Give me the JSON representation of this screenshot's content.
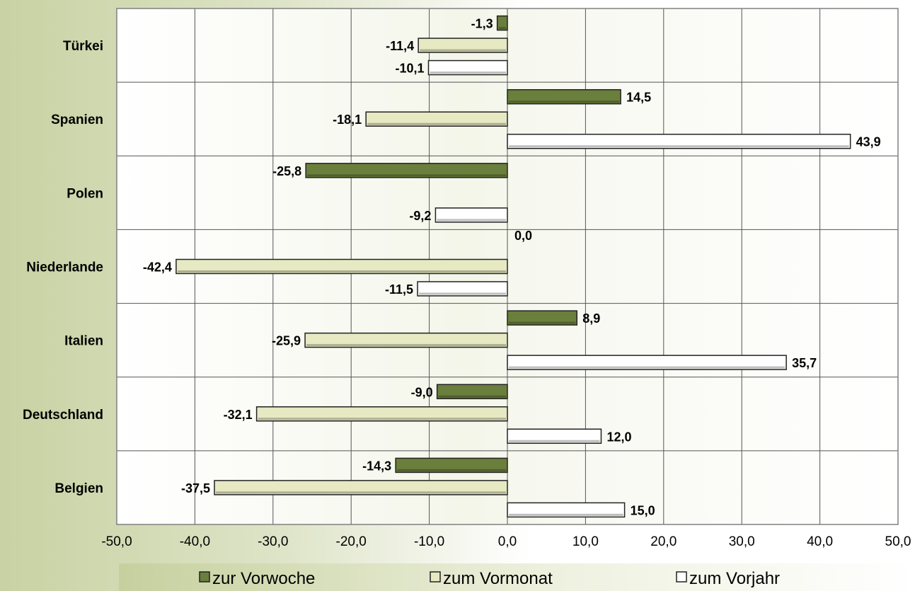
{
  "chart_data": {
    "type": "bar",
    "orientation": "horizontal",
    "categories": [
      "Türkei",
      "Spanien",
      "Polen",
      "Niederlande",
      "Italien",
      "Deutschland",
      "Belgien"
    ],
    "series": [
      {
        "name": "zur Vorwoche",
        "values": [
          -1.3,
          14.5,
          -25.8,
          0.0,
          8.9,
          -9.0,
          -14.3
        ],
        "labels": [
          "-1,3",
          "14,5",
          "-25,8",
          "0,0",
          "8,9",
          "-9,0",
          "-14,3"
        ],
        "color": "#6b7f3c"
      },
      {
        "name": "zum Vormonat",
        "values": [
          -11.4,
          -18.1,
          null,
          -42.4,
          -25.9,
          -32.1,
          -37.5
        ],
        "labels": [
          "-11,4",
          "-18,1",
          "",
          "-42,4",
          "-25,9",
          "-32,1",
          "-37,5"
        ],
        "color": "#e6e9c2"
      },
      {
        "name": "zum Vorjahr",
        "values": [
          -10.1,
          43.9,
          -9.2,
          -11.5,
          35.7,
          12.0,
          15.0
        ],
        "labels": [
          "-10,1",
          "43,9",
          "-9,2",
          "-11,5",
          "35,7",
          "12,0",
          "15,0"
        ],
        "color": "#ffffff"
      }
    ],
    "xlim": [
      -50,
      50
    ],
    "xticks": [
      -50,
      -40,
      -30,
      -20,
      -10,
      0,
      10,
      20,
      30,
      40,
      50
    ],
    "xtick_labels": [
      "-50,0",
      "-40,0",
      "-30,0",
      "-20,0",
      "-10,0",
      "0,0",
      "10,0",
      "20,0",
      "30,0",
      "40,0",
      "50,0"
    ],
    "grid": true,
    "legend_position": "bottom",
    "title": "",
    "xlabel": "",
    "ylabel": ""
  }
}
